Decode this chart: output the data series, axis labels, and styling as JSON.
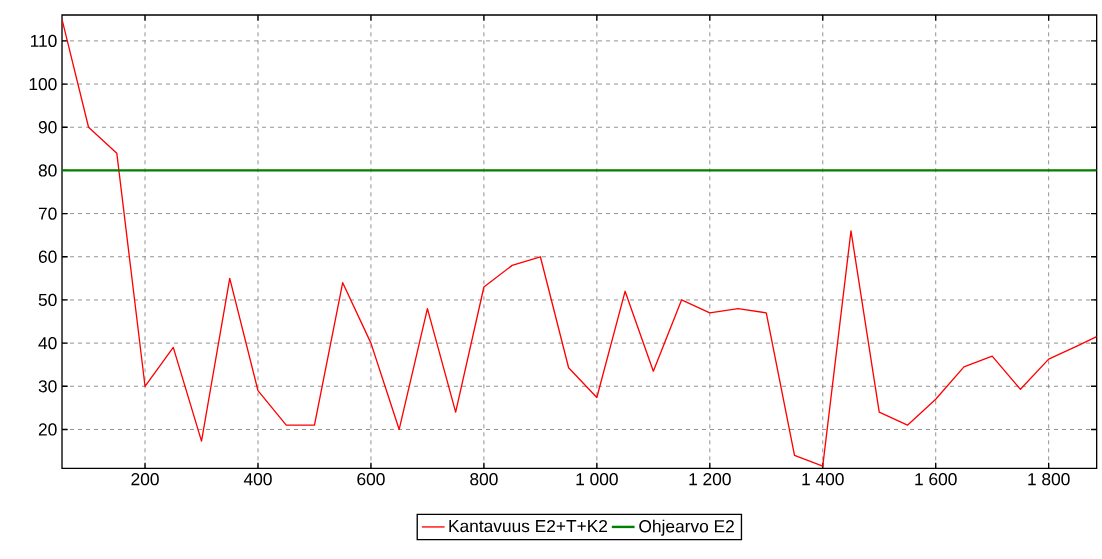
{
  "chart_data": {
    "type": "line",
    "x": [
      53,
      100,
      150,
      200,
      250,
      300,
      350,
      400,
      450,
      500,
      550,
      600,
      650,
      700,
      750,
      800,
      850,
      900,
      950,
      1000,
      1050,
      1100,
      1150,
      1200,
      1250,
      1300,
      1350,
      1400,
      1450,
      1500,
      1550,
      1600,
      1650,
      1700,
      1750,
      1800,
      1850,
      1885
    ],
    "series": [
      {
        "name": "Kantavuus E2+T+K2",
        "color": "#ff0000",
        "values": [
          115,
          90,
          84,
          30,
          39,
          17.3,
          55,
          29,
          21,
          21,
          54,
          40,
          20,
          48,
          24,
          53,
          58,
          60,
          34.3,
          27.4,
          52,
          33.5,
          50,
          47,
          48,
          47,
          14,
          11.5,
          66,
          24,
          21,
          27,
          34.5,
          37,
          29.3,
          36.3,
          39.3,
          41.5
        ]
      }
    ],
    "ref_lines": [
      {
        "axis": "y",
        "value": 80,
        "label": "Ohjearvo E2",
        "color": "#008000"
      }
    ],
    "xlim": [
      53,
      1885
    ],
    "ylim": [
      11,
      116
    ],
    "xticks": [
      200,
      400,
      600,
      800,
      {
        "value": 1000,
        "label": "1 000"
      },
      {
        "value": 1200,
        "label": "1 200"
      },
      {
        "value": 1400,
        "label": "1 400"
      },
      {
        "value": 1600,
        "label": "1 600"
      },
      {
        "value": 1800,
        "label": "1 800"
      }
    ],
    "yticks": [
      20,
      30,
      40,
      50,
      60,
      70,
      80,
      90,
      100,
      110
    ],
    "grid": true,
    "legend": "bottom",
    "line_style": "solid",
    "marker": "none"
  }
}
